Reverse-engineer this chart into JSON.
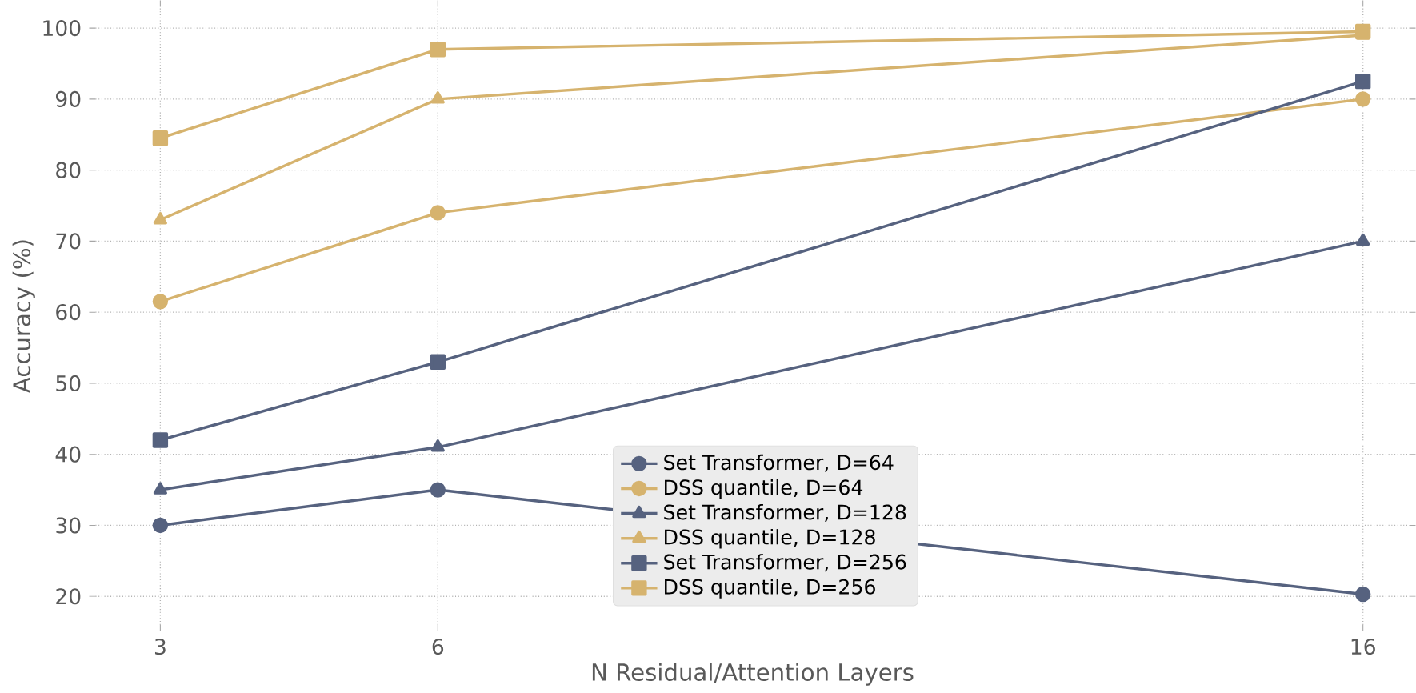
{
  "chart_data": {
    "type": "line",
    "xlabel": "N Residual/Attention Layers",
    "ylabel": "Accuracy (%)",
    "x": [
      3,
      6,
      16
    ],
    "xlim": [
      2.3,
      16.5
    ],
    "xticks": [
      3,
      6,
      16
    ],
    "ylim": [
      16,
      103
    ],
    "yticks": [
      20,
      30,
      40,
      50,
      60,
      70,
      80,
      90,
      100
    ],
    "grid": true,
    "legend": "bottom",
    "line_style": "solid",
    "series": [
      {
        "name": "Set Transformer, D=64",
        "color": "#56627f",
        "marker": "circle",
        "values": [
          30,
          35,
          20.3
        ]
      },
      {
        "name": "DSS quantile, D=64",
        "color": "#d6b36e",
        "marker": "circle",
        "values": [
          61.5,
          74,
          90
        ]
      },
      {
        "name": "Set Transformer, D=128",
        "color": "#56627f",
        "marker": "triangle",
        "values": [
          35,
          41,
          70
        ]
      },
      {
        "name": "DSS quantile, D=128",
        "color": "#d6b36e",
        "marker": "triangle",
        "values": [
          73,
          90,
          99
        ]
      },
      {
        "name": "Set Transformer, D=256",
        "color": "#56627f",
        "marker": "square",
        "values": [
          42,
          53,
          92.5
        ]
      },
      {
        "name": "DSS quantile, D=256",
        "color": "#d6b36e",
        "marker": "square",
        "values": [
          84.5,
          97,
          99.5
        ]
      }
    ]
  }
}
